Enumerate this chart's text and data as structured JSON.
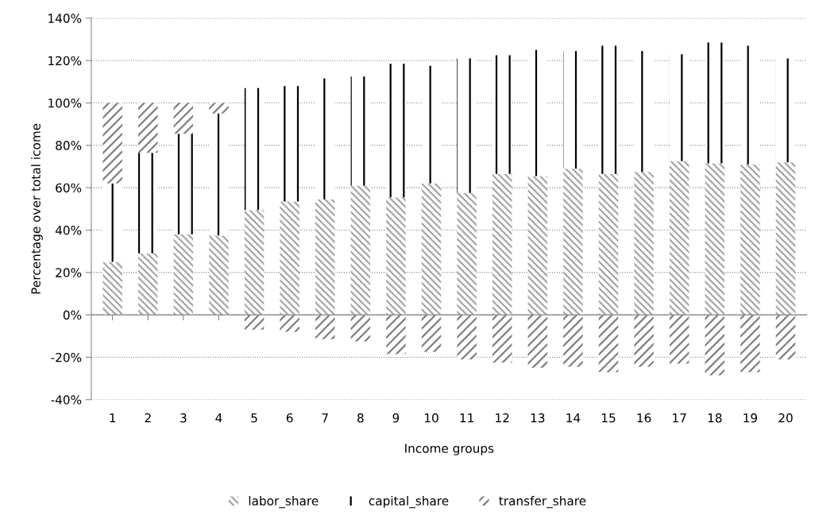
{
  "chart_data": {
    "type": "bar",
    "stacked": true,
    "xlabel": "Income groups",
    "ylabel": "Percentage over total icome",
    "categories": [
      "1",
      "2",
      "3",
      "4",
      "5",
      "6",
      "7",
      "8",
      "9",
      "10",
      "11",
      "12",
      "13",
      "14",
      "15",
      "16",
      "17",
      "18",
      "19",
      "20"
    ],
    "series": [
      {
        "name": "labor_share",
        "color": "#a6a6a6",
        "values": [
          25,
          29,
          38,
          37.5,
          49.5,
          53.5,
          54.5,
          61,
          55.5,
          62,
          57.5,
          66.5,
          65.5,
          69,
          66.5,
          67.5,
          72.5,
          71.5,
          71,
          72
        ]
      },
      {
        "name": "capital_share",
        "color": "#000000",
        "values": [
          37,
          47.5,
          47.5,
          57.5,
          57.5,
          54.5,
          57,
          51.5,
          63,
          55.5,
          63.5,
          56,
          59.5,
          55.5,
          60.5,
          57,
          50.5,
          57,
          56,
          49
        ]
      },
      {
        "name": "transfer_share",
        "color": "#7f7f7f",
        "values": [
          38,
          23.5,
          14.5,
          5,
          -7,
          -8,
          -11.5,
          -12.5,
          -18.5,
          -17.5,
          -21,
          -22.5,
          -25,
          -24.5,
          -27,
          -24.5,
          -23,
          -28.5,
          -27,
          -21
        ]
      }
    ],
    "ylim": [
      -40,
      140
    ],
    "yticks": [
      {
        "value": -40,
        "label": "-40%"
      },
      {
        "value": -20,
        "label": "-20%"
      },
      {
        "value": 0,
        "label": "0%"
      },
      {
        "value": 20,
        "label": "20%"
      },
      {
        "value": 40,
        "label": "40%"
      },
      {
        "value": 60,
        "label": "60%"
      },
      {
        "value": 80,
        "label": "80%"
      },
      {
        "value": 100,
        "label": "100%"
      },
      {
        "value": 120,
        "label": "120%"
      },
      {
        "value": 140,
        "label": "140%"
      }
    ],
    "grid": "y",
    "legend": "bottom"
  }
}
